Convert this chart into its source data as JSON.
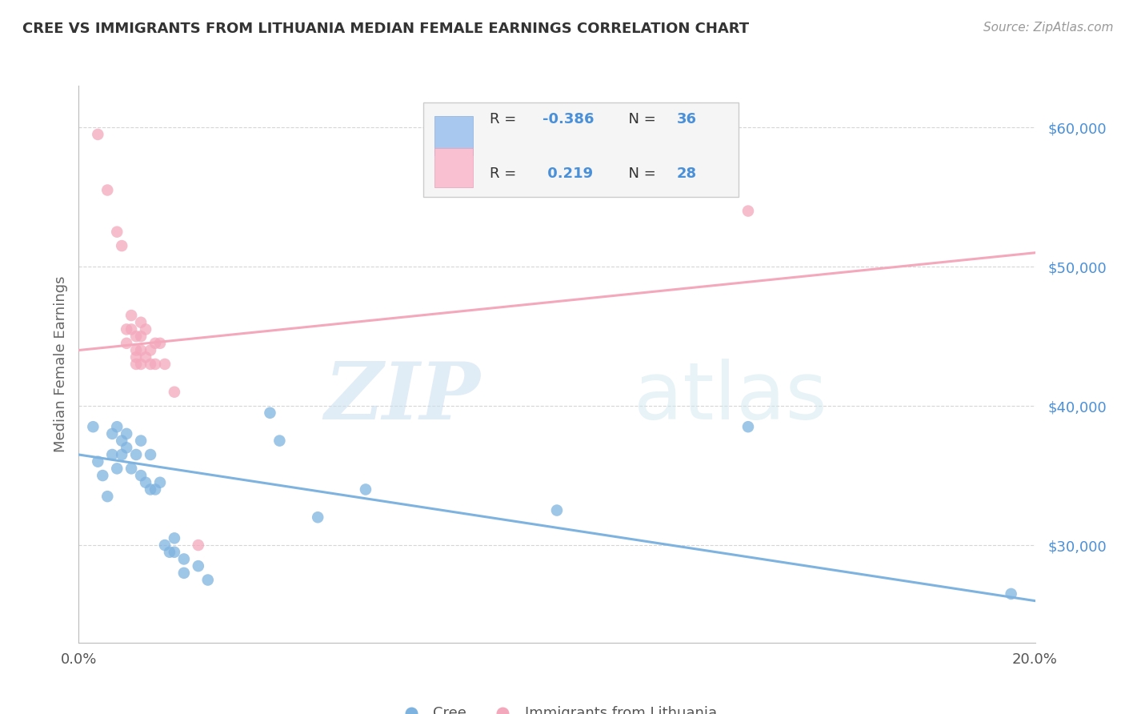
{
  "title": "CREE VS IMMIGRANTS FROM LITHUANIA MEDIAN FEMALE EARNINGS CORRELATION CHART",
  "source": "Source: ZipAtlas.com",
  "ylabel": "Median Female Earnings",
  "x_min": 0.0,
  "x_max": 0.2,
  "y_min": 23000,
  "y_max": 63000,
  "yticks": [
    30000,
    40000,
    50000,
    60000
  ],
  "ytick_labels": [
    "$30,000",
    "$40,000",
    "$50,000",
    "$60,000"
  ],
  "xticks": [
    0.0,
    0.05,
    0.1,
    0.15,
    0.2
  ],
  "xtick_labels": [
    "0.0%",
    "",
    "",
    "",
    "20.0%"
  ],
  "watermark_zip": "ZIP",
  "watermark_atlas": "atlas",
  "blue_color": "#7eb3e0",
  "pink_color": "#f4a8bc",
  "blue_scatter": [
    [
      0.003,
      38500
    ],
    [
      0.004,
      36000
    ],
    [
      0.005,
      35000
    ],
    [
      0.006,
      33500
    ],
    [
      0.007,
      38000
    ],
    [
      0.007,
      36500
    ],
    [
      0.008,
      38500
    ],
    [
      0.008,
      35500
    ],
    [
      0.009,
      37500
    ],
    [
      0.009,
      36500
    ],
    [
      0.01,
      38000
    ],
    [
      0.01,
      37000
    ],
    [
      0.011,
      35500
    ],
    [
      0.012,
      36500
    ],
    [
      0.013,
      37500
    ],
    [
      0.013,
      35000
    ],
    [
      0.014,
      34500
    ],
    [
      0.015,
      36500
    ],
    [
      0.015,
      34000
    ],
    [
      0.016,
      34000
    ],
    [
      0.017,
      34500
    ],
    [
      0.018,
      30000
    ],
    [
      0.019,
      29500
    ],
    [
      0.02,
      30500
    ],
    [
      0.02,
      29500
    ],
    [
      0.022,
      29000
    ],
    [
      0.022,
      28000
    ],
    [
      0.025,
      28500
    ],
    [
      0.027,
      27500
    ],
    [
      0.04,
      39500
    ],
    [
      0.042,
      37500
    ],
    [
      0.05,
      32000
    ],
    [
      0.06,
      34000
    ],
    [
      0.1,
      32500
    ],
    [
      0.14,
      38500
    ],
    [
      0.195,
      26500
    ]
  ],
  "pink_scatter": [
    [
      0.004,
      59500
    ],
    [
      0.006,
      55500
    ],
    [
      0.008,
      52500
    ],
    [
      0.009,
      51500
    ],
    [
      0.01,
      45500
    ],
    [
      0.01,
      44500
    ],
    [
      0.011,
      46500
    ],
    [
      0.011,
      45500
    ],
    [
      0.012,
      45000
    ],
    [
      0.012,
      44000
    ],
    [
      0.012,
      43500
    ],
    [
      0.012,
      43000
    ],
    [
      0.013,
      46000
    ],
    [
      0.013,
      45000
    ],
    [
      0.013,
      44000
    ],
    [
      0.013,
      43000
    ],
    [
      0.014,
      43500
    ],
    [
      0.014,
      45500
    ],
    [
      0.015,
      44000
    ],
    [
      0.015,
      43000
    ],
    [
      0.016,
      44500
    ],
    [
      0.016,
      43000
    ],
    [
      0.017,
      44500
    ],
    [
      0.018,
      43000
    ],
    [
      0.02,
      41000
    ],
    [
      0.025,
      30000
    ],
    [
      0.14,
      54000
    ]
  ],
  "blue_line_x": [
    0.0,
    0.2
  ],
  "blue_line_y": [
    36500,
    26000
  ],
  "pink_line_x": [
    0.0,
    0.2
  ],
  "pink_line_y": [
    44000,
    51000
  ],
  "title_color": "#333333",
  "axis_label_color": "#666666",
  "tick_label_color_y": "#4a90d9",
  "tick_label_color_x": "#555555",
  "grid_color": "#cccccc",
  "background_color": "#ffffff",
  "legend_r_color": "#4a90d9",
  "legend_n_color": "#333333",
  "legend_box_bg": "#f5f5f5",
  "legend_box_edge": "#cccccc",
  "bottom_legend_blue": "Cree",
  "bottom_legend_pink": "Immigrants from Lithuania"
}
